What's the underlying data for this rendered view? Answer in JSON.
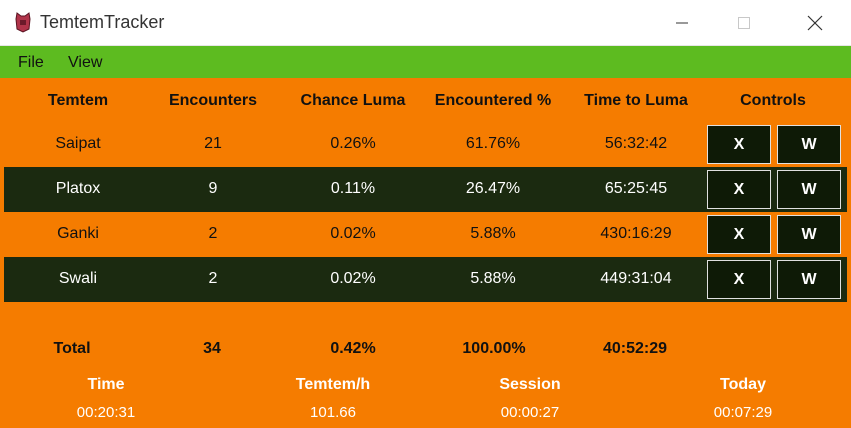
{
  "window": {
    "title": "TemtemTracker",
    "icon": "temtem-app-icon",
    "controls": [
      "minimize-icon",
      "maximize-icon",
      "close-icon"
    ]
  },
  "menu": {
    "items": [
      "File",
      "View"
    ]
  },
  "colors": {
    "background": "#f57c00",
    "menubar": "#5dbb20",
    "dark_row": "#1b2a10",
    "control_button": "#0e1a06"
  },
  "table": {
    "headers": [
      "Temtem",
      "Encounters",
      "Chance Luma",
      "Encountered %",
      "Time to Luma",
      "Controls"
    ],
    "rows": [
      {
        "name": "Saipat",
        "encounters": "21",
        "chance": "0.26%",
        "encountered": "61.76%",
        "time": "56:32:42",
        "btn_x": "X",
        "btn_w": "W"
      },
      {
        "name": "Platox",
        "encounters": "9",
        "chance": "0.11%",
        "encountered": "26.47%",
        "time": "65:25:45",
        "btn_x": "X",
        "btn_w": "W"
      },
      {
        "name": "Ganki",
        "encounters": "2",
        "chance": "0.02%",
        "encountered": "5.88%",
        "time": "430:16:29",
        "btn_x": "X",
        "btn_w": "W"
      },
      {
        "name": "Swali",
        "encounters": "2",
        "chance": "0.02%",
        "encountered": "5.88%",
        "time": "449:31:04",
        "btn_x": "X",
        "btn_w": "W"
      }
    ]
  },
  "totals": {
    "label": "Total",
    "encounters": "34",
    "chance": "0.42%",
    "encountered": "100.00%",
    "time": "40:52:29"
  },
  "stats": [
    {
      "label": "Time",
      "value": "00:20:31"
    },
    {
      "label": "Temtem/h",
      "value": "101.66"
    },
    {
      "label": "Session",
      "value": "00:00:27"
    },
    {
      "label": "Today",
      "value": "00:07:29"
    }
  ]
}
